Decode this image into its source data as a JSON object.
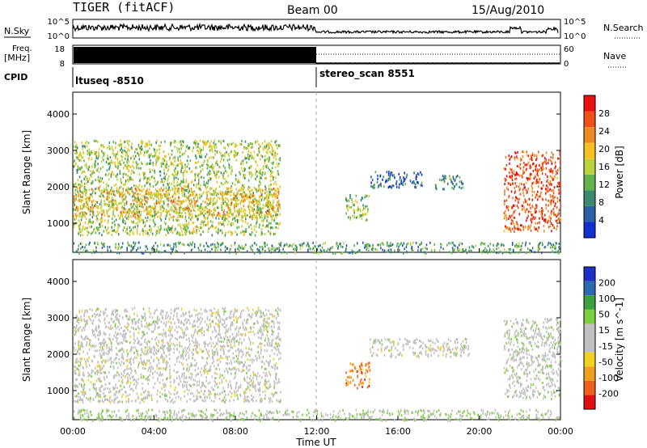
{
  "header": {
    "title": "TIGER (fitACF)",
    "beam": "Beam 00",
    "date": "15/Aug/2010"
  },
  "left_labels": {
    "nsky": "N.Sky",
    "freq": "Freq.",
    "freq_unit": "[MHz]",
    "cpid": "CPID"
  },
  "right_labels": {
    "nsearch": "N.Search",
    "nave": "Nave"
  },
  "small_axes": {
    "nsky_ticks": [
      "10^5",
      "10^0"
    ],
    "freq_ticks": [
      "18",
      "8"
    ],
    "nsearch_ticks": [
      "10^5",
      "10^0"
    ],
    "nave_ticks": [
      "60",
      "0"
    ]
  },
  "cpid": {
    "segments": [
      {
        "label": "ltuseq -8510",
        "start_hour": 0,
        "end_hour": 12
      },
      {
        "label": "stereo_scan 8551",
        "start_hour": 12,
        "end_hour": 24
      }
    ]
  },
  "colors": {
    "power_scale": [
      "#1030d0",
      "#2a5fa8",
      "#3a8a70",
      "#5fb34a",
      "#b8d43a",
      "#f5c020",
      "#f08a20",
      "#f05018",
      "#e81010"
    ],
    "velocity_scale": [
      "#1c30c8",
      "#2a6ab0",
      "#3ca040",
      "#7cd040",
      "#c0c0c0",
      "#c0c0c0",
      "#f2d020",
      "#f0a020",
      "#f06018",
      "#e01010"
    ]
  },
  "chart_data": [
    {
      "type": "heatmap",
      "name": "power",
      "ylabel": "Slant Range [km]",
      "ylim": [
        200,
        4600
      ],
      "yticks": [
        "1000",
        "2000",
        "3000",
        "4000"
      ],
      "colorbar_label": "Power [dB]",
      "colorbar_ticks": [
        "4",
        "8",
        "12",
        "16",
        "20",
        "24",
        "28"
      ],
      "colorbar_range": [
        0,
        32
      ],
      "features": [
        {
          "hours": [
            0,
            10.2
          ],
          "range_km": [
            700,
            3300
          ],
          "value": 15
        },
        {
          "hours": [
            0,
            10.2
          ],
          "range_km": [
            1200,
            2000
          ],
          "value": 20
        },
        {
          "hours": [
            13.4,
            14.6
          ],
          "range_km": [
            1100,
            1800
          ],
          "value": 14
        },
        {
          "hours": [
            14.6,
            17.2
          ],
          "range_km": [
            2000,
            2450
          ],
          "value": 6
        },
        {
          "hours": [
            17.8,
            19.2
          ],
          "range_km": [
            1950,
            2350
          ],
          "value": 9
        },
        {
          "hours": [
            21.2,
            24
          ],
          "range_km": [
            800,
            3000
          ],
          "value": 27
        },
        {
          "hours": [
            0,
            24
          ],
          "range_km": [
            200,
            500
          ],
          "value": 10
        }
      ]
    },
    {
      "type": "heatmap",
      "name": "velocity",
      "ylabel": "Slant Range [km]",
      "ylim": [
        200,
        4600
      ],
      "yticks": [
        "1000",
        "2000",
        "3000",
        "4000"
      ],
      "colorbar_label": "Velocity [m s^-1]",
      "colorbar_ticks": [
        "200",
        "100",
        "50",
        "15",
        "-15",
        "-50",
        "-100",
        "-200"
      ],
      "colorbar_range": [
        -250,
        250
      ],
      "features": [
        {
          "hours": [
            0,
            10.2
          ],
          "range_km": [
            700,
            3300
          ],
          "value": 0
        },
        {
          "hours": [
            13.4,
            14.6
          ],
          "range_km": [
            1100,
            1800
          ],
          "value": -150
        },
        {
          "hours": [
            14.6,
            19.5
          ],
          "range_km": [
            1950,
            2450
          ],
          "value": 0
        },
        {
          "hours": [
            21.2,
            24
          ],
          "range_km": [
            800,
            3000
          ],
          "value": 10
        },
        {
          "hours": [
            0,
            24
          ],
          "range_km": [
            200,
            500
          ],
          "value": 40
        }
      ]
    }
  ],
  "x_axis": {
    "label": "Time UT",
    "ticks": [
      "00:00",
      "04:00",
      "08:00",
      "12:00",
      "16:00",
      "20:00",
      "00:00"
    ],
    "range_hours": [
      0,
      24
    ]
  }
}
